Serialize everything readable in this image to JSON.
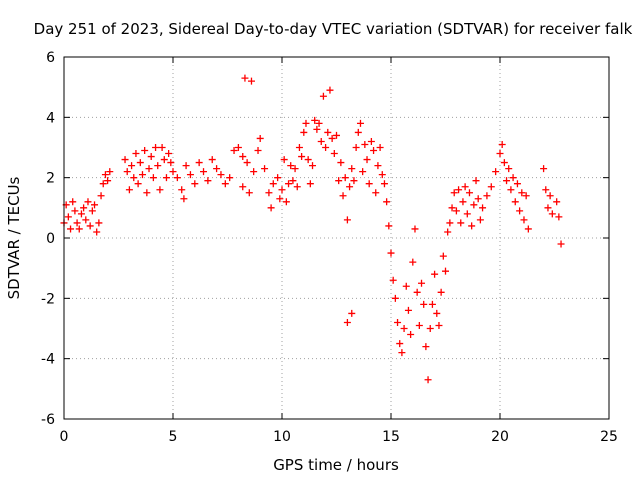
{
  "colors": {
    "series": "#ff0000",
    "grid": "#a0a0a0",
    "frame": "#000000",
    "background": "#ffffff"
  },
  "chart_data": {
    "type": "scatter",
    "title": "Day 251 of 2023, Sidereal Day-to-day VTEC variation (SDTVAR) for receiver falk",
    "xlabel": "GPS time / hours",
    "ylabel": "SDTVAR / TECUs",
    "xlim": [
      0,
      25
    ],
    "ylim": [
      -6,
      6
    ],
    "xticks": [
      0,
      5,
      10,
      15,
      20,
      25
    ],
    "yticks": [
      -6,
      -4,
      -2,
      0,
      2,
      4,
      6
    ],
    "grid": true,
    "marker": "plus",
    "series": [
      {
        "name": "SDTVAR",
        "points": [
          [
            0.0,
            0.5
          ],
          [
            0.1,
            1.1
          ],
          [
            0.2,
            0.7
          ],
          [
            0.3,
            0.3
          ],
          [
            0.4,
            1.2
          ],
          [
            0.5,
            0.9
          ],
          [
            0.6,
            0.5
          ],
          [
            0.7,
            0.3
          ],
          [
            0.8,
            0.8
          ],
          [
            0.9,
            1.0
          ],
          [
            1.0,
            0.6
          ],
          [
            1.1,
            1.2
          ],
          [
            1.2,
            0.4
          ],
          [
            1.3,
            0.9
          ],
          [
            1.4,
            1.1
          ],
          [
            1.5,
            0.2
          ],
          [
            1.6,
            0.5
          ],
          [
            1.7,
            1.4
          ],
          [
            1.8,
            1.8
          ],
          [
            1.9,
            2.1
          ],
          [
            2.0,
            1.9
          ],
          [
            2.1,
            2.2
          ],
          [
            2.8,
            2.6
          ],
          [
            2.9,
            2.2
          ],
          [
            3.0,
            1.6
          ],
          [
            3.1,
            2.4
          ],
          [
            3.2,
            2.0
          ],
          [
            3.3,
            2.8
          ],
          [
            3.4,
            1.8
          ],
          [
            3.5,
            2.5
          ],
          [
            3.6,
            2.1
          ],
          [
            3.7,
            2.9
          ],
          [
            3.8,
            1.5
          ],
          [
            3.9,
            2.3
          ],
          [
            4.0,
            2.7
          ],
          [
            4.1,
            2.0
          ],
          [
            4.2,
            3.0
          ],
          [
            4.3,
            2.4
          ],
          [
            4.4,
            1.6
          ],
          [
            4.5,
            3.0
          ],
          [
            4.6,
            2.6
          ],
          [
            4.7,
            2.0
          ],
          [
            4.8,
            2.8
          ],
          [
            4.9,
            2.5
          ],
          [
            5.0,
            2.2
          ],
          [
            5.2,
            2.0
          ],
          [
            5.4,
            1.6
          ],
          [
            5.5,
            1.3
          ],
          [
            5.6,
            2.4
          ],
          [
            5.8,
            2.1
          ],
          [
            6.0,
            1.8
          ],
          [
            6.2,
            2.5
          ],
          [
            6.4,
            2.2
          ],
          [
            6.6,
            1.9
          ],
          [
            6.8,
            2.6
          ],
          [
            7.0,
            2.3
          ],
          [
            7.2,
            2.1
          ],
          [
            7.4,
            1.8
          ],
          [
            7.6,
            2.0
          ],
          [
            7.8,
            2.9
          ],
          [
            8.0,
            3.0
          ],
          [
            8.2,
            2.7
          ],
          [
            8.4,
            2.5
          ],
          [
            8.2,
            1.7
          ],
          [
            8.5,
            1.5
          ],
          [
            8.7,
            2.2
          ],
          [
            8.9,
            2.9
          ],
          [
            9.0,
            3.3
          ],
          [
            8.3,
            5.3
          ],
          [
            8.6,
            5.2
          ],
          [
            9.2,
            2.3
          ],
          [
            9.4,
            1.5
          ],
          [
            9.5,
            1.0
          ],
          [
            9.6,
            1.8
          ],
          [
            9.8,
            2.0
          ],
          [
            9.9,
            1.3
          ],
          [
            10.0,
            1.6
          ],
          [
            10.1,
            2.6
          ],
          [
            10.2,
            1.2
          ],
          [
            10.3,
            1.8
          ],
          [
            10.4,
            2.4
          ],
          [
            10.5,
            1.9
          ],
          [
            10.6,
            2.3
          ],
          [
            10.7,
            1.7
          ],
          [
            10.8,
            3.0
          ],
          [
            10.9,
            2.7
          ],
          [
            11.0,
            3.5
          ],
          [
            11.1,
            3.8
          ],
          [
            11.2,
            2.6
          ],
          [
            11.3,
            1.8
          ],
          [
            11.4,
            2.4
          ],
          [
            11.5,
            3.9
          ],
          [
            11.6,
            3.6
          ],
          [
            11.7,
            3.8
          ],
          [
            11.8,
            3.2
          ],
          [
            11.9,
            4.7
          ],
          [
            12.0,
            3.0
          ],
          [
            12.1,
            3.5
          ],
          [
            12.2,
            4.9
          ],
          [
            12.3,
            3.3
          ],
          [
            12.4,
            2.8
          ],
          [
            12.5,
            3.4
          ],
          [
            12.6,
            1.9
          ],
          [
            12.7,
            2.5
          ],
          [
            12.8,
            1.4
          ],
          [
            12.9,
            2.0
          ],
          [
            13.0,
            0.6
          ],
          [
            13.1,
            1.7
          ],
          [
            13.2,
            2.3
          ],
          [
            13.0,
            -2.8
          ],
          [
            13.2,
            -2.5
          ],
          [
            13.3,
            1.9
          ],
          [
            13.4,
            3.0
          ],
          [
            13.5,
            3.5
          ],
          [
            13.6,
            3.8
          ],
          [
            13.7,
            2.2
          ],
          [
            13.8,
            3.1
          ],
          [
            13.9,
            2.6
          ],
          [
            14.0,
            1.8
          ],
          [
            14.1,
            3.2
          ],
          [
            14.2,
            2.9
          ],
          [
            14.3,
            1.5
          ],
          [
            14.4,
            2.4
          ],
          [
            14.5,
            3.0
          ],
          [
            14.6,
            2.1
          ],
          [
            14.7,
            1.8
          ],
          [
            14.8,
            1.2
          ],
          [
            14.9,
            0.4
          ],
          [
            15.0,
            -0.5
          ],
          [
            15.1,
            -1.4
          ],
          [
            15.2,
            -2.0
          ],
          [
            15.3,
            -2.8
          ],
          [
            15.4,
            -3.5
          ],
          [
            15.5,
            -3.8
          ],
          [
            15.6,
            -3.0
          ],
          [
            15.7,
            -1.6
          ],
          [
            15.8,
            -2.4
          ],
          [
            15.9,
            -3.2
          ],
          [
            16.0,
            -0.8
          ],
          [
            16.1,
            0.3
          ],
          [
            16.2,
            -1.8
          ],
          [
            16.3,
            -2.9
          ],
          [
            16.4,
            -1.5
          ],
          [
            16.5,
            -2.2
          ],
          [
            16.6,
            -3.6
          ],
          [
            16.7,
            -4.7
          ],
          [
            16.8,
            -3.0
          ],
          [
            16.9,
            -2.2
          ],
          [
            17.0,
            -1.2
          ],
          [
            17.1,
            -2.5
          ],
          [
            17.2,
            -2.9
          ],
          [
            17.3,
            -1.8
          ],
          [
            17.4,
            -0.6
          ],
          [
            17.5,
            -1.1
          ],
          [
            17.6,
            0.2
          ],
          [
            17.7,
            0.5
          ],
          [
            17.8,
            1.0
          ],
          [
            17.9,
            1.5
          ],
          [
            18.0,
            0.9
          ],
          [
            18.1,
            1.6
          ],
          [
            18.2,
            0.5
          ],
          [
            18.3,
            1.2
          ],
          [
            18.4,
            1.7
          ],
          [
            18.5,
            0.8
          ],
          [
            18.6,
            1.5
          ],
          [
            18.7,
            0.4
          ],
          [
            18.8,
            1.1
          ],
          [
            18.9,
            1.9
          ],
          [
            19.0,
            1.3
          ],
          [
            19.1,
            0.6
          ],
          [
            19.2,
            1.0
          ],
          [
            19.4,
            1.4
          ],
          [
            19.6,
            1.7
          ],
          [
            19.8,
            2.2
          ],
          [
            20.0,
            2.8
          ],
          [
            20.1,
            3.1
          ],
          [
            20.2,
            2.5
          ],
          [
            20.3,
            1.9
          ],
          [
            20.4,
            2.3
          ],
          [
            20.5,
            1.6
          ],
          [
            20.6,
            2.0
          ],
          [
            20.7,
            1.2
          ],
          [
            20.8,
            1.8
          ],
          [
            20.9,
            0.9
          ],
          [
            21.0,
            1.5
          ],
          [
            21.1,
            0.6
          ],
          [
            21.2,
            1.4
          ],
          [
            21.3,
            0.3
          ],
          [
            22.0,
            2.3
          ],
          [
            22.1,
            1.6
          ],
          [
            22.2,
            1.0
          ],
          [
            22.3,
            1.4
          ],
          [
            22.4,
            0.8
          ],
          [
            22.6,
            1.2
          ],
          [
            22.7,
            0.7
          ],
          [
            22.8,
            -0.2
          ]
        ]
      }
    ]
  }
}
